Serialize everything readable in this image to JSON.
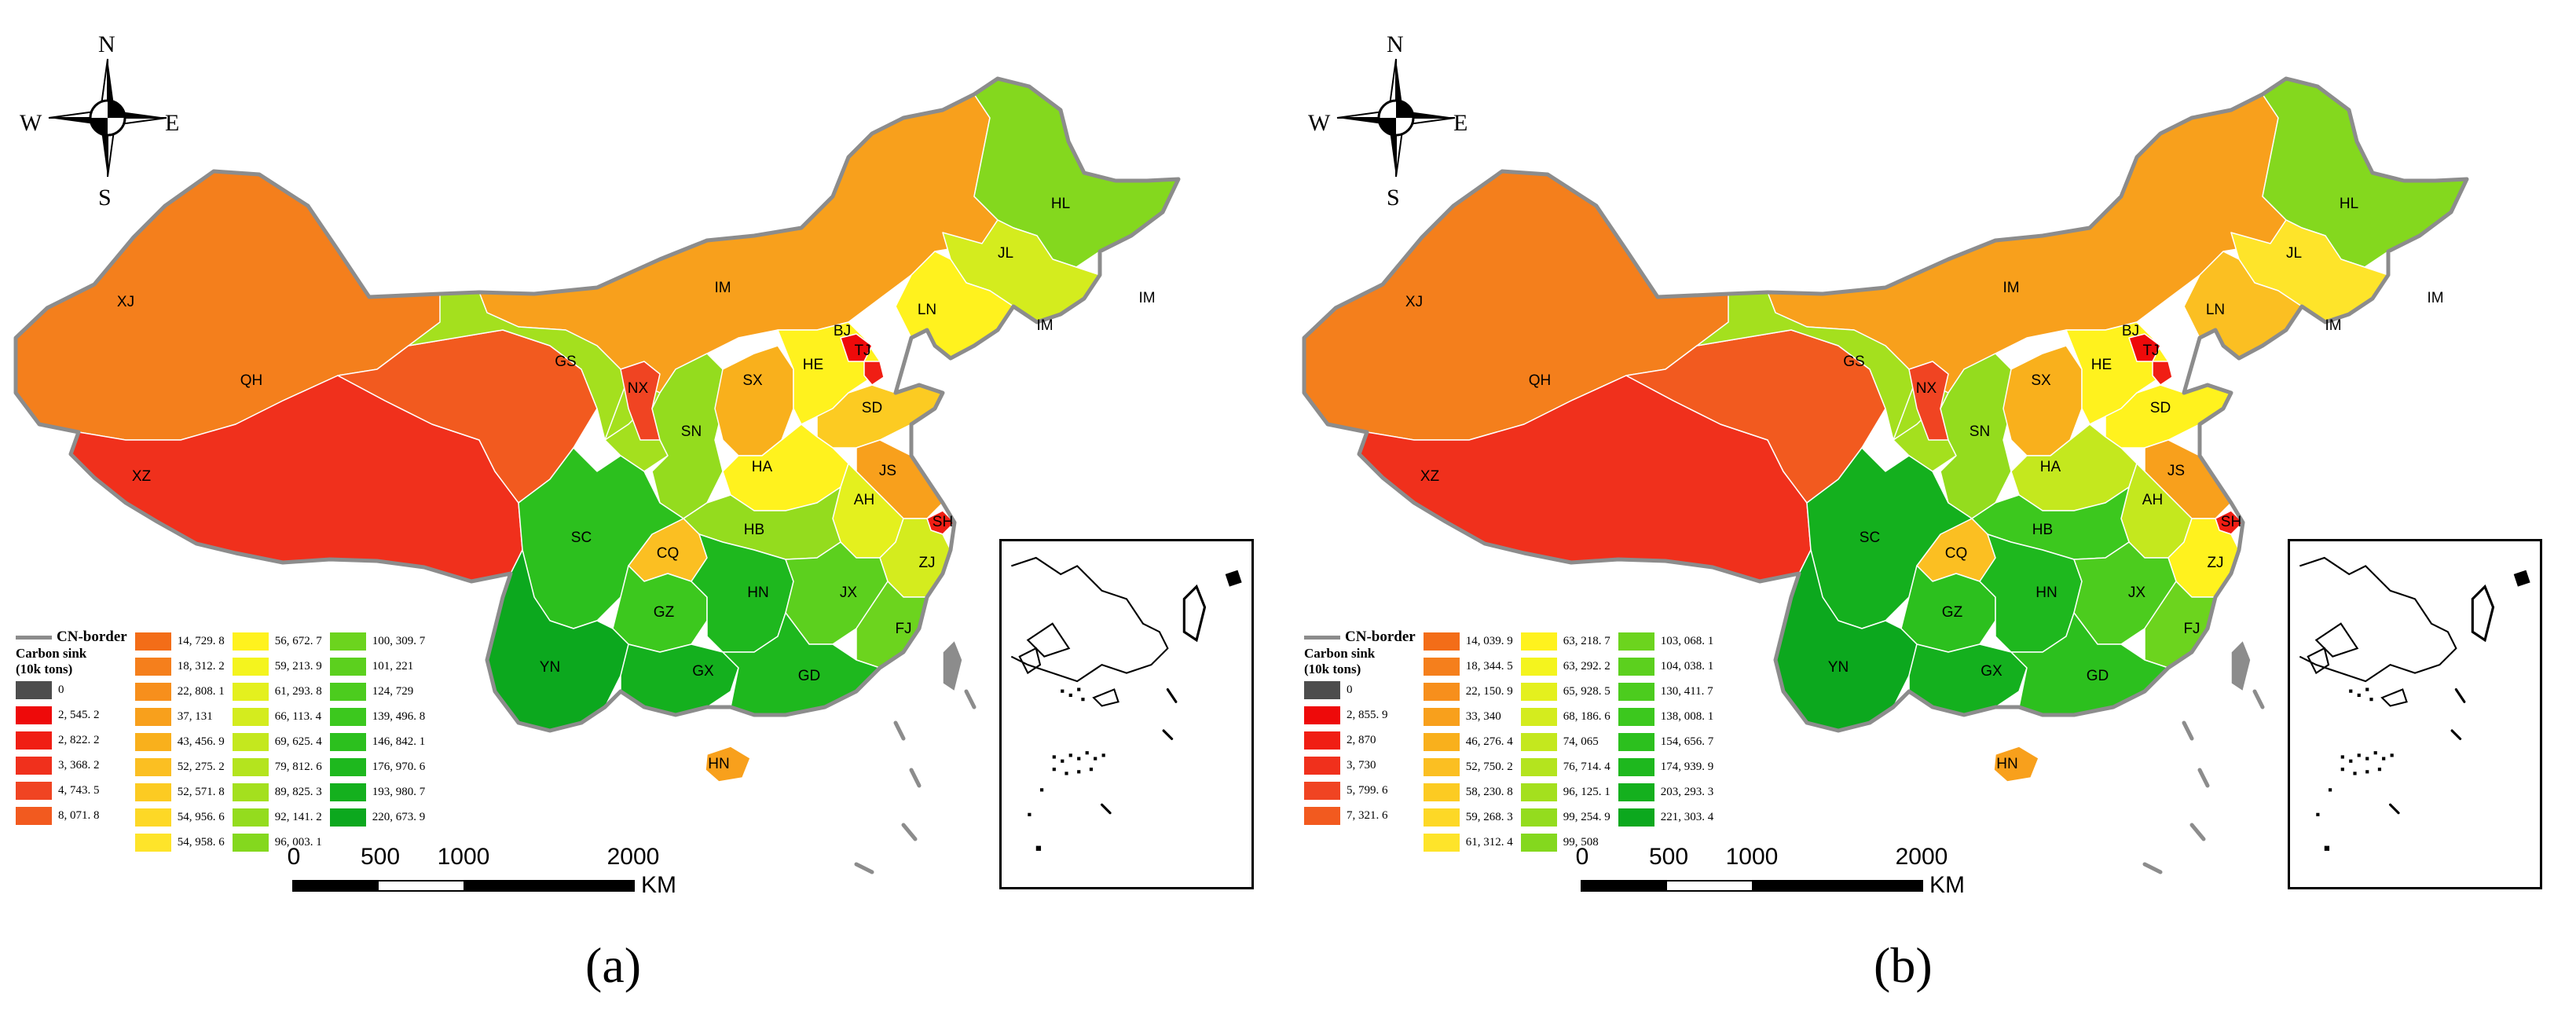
{
  "panels": [
    {
      "id": "a",
      "label": "(a)",
      "compass": {
        "n": "N",
        "s": "S",
        "e": "E",
        "w": "W"
      },
      "border_label": "CN-border",
      "legend_title_1": "Carbon sink",
      "legend_title_2": "(10k tons)",
      "legend_columns": [
        [
          {
            "value": "0",
            "color": "#4d4d4d"
          },
          {
            "value": "2, 545. 2",
            "color": "#ee0a0a"
          },
          {
            "value": "2, 822. 2",
            "color": "#f01e14"
          },
          {
            "value": "3, 368. 2",
            "color": "#f0301c"
          },
          {
            "value": "4, 743. 5",
            "color": "#f04422"
          },
          {
            "value": "8, 071. 8",
            "color": "#f25a1f"
          }
        ],
        [
          {
            "value": "14, 729. 8",
            "color": "#f36d18"
          },
          {
            "value": "18, 312. 2",
            "color": "#f57f1c"
          },
          {
            "value": "22, 808. 1",
            "color": "#f78f1c"
          },
          {
            "value": "37, 131",
            "color": "#f8a01c"
          },
          {
            "value": "43, 456. 9",
            "color": "#f9b01c"
          },
          {
            "value": "52, 275. 2",
            "color": "#fbbf22"
          },
          {
            "value": "52, 571. 8",
            "color": "#fccb22"
          },
          {
            "value": "54, 956. 6",
            "color": "#fdd826"
          },
          {
            "value": "54, 958. 6",
            "color": "#fee42a"
          }
        ],
        [
          {
            "value": "56, 672. 7",
            "color": "#fff21e"
          },
          {
            "value": "59, 213. 9",
            "color": "#f4f41e"
          },
          {
            "value": "61, 293. 8",
            "color": "#e4f01e"
          },
          {
            "value": "66, 113. 4",
            "color": "#d4ec1e"
          },
          {
            "value": "69, 625. 4",
            "color": "#c4e81e"
          },
          {
            "value": "79, 812. 6",
            "color": "#b4e41e"
          },
          {
            "value": "89, 825. 3",
            "color": "#a4e01e"
          },
          {
            "value": "92, 141. 2",
            "color": "#94dc1e"
          },
          {
            "value": "96, 003. 1",
            "color": "#84d81e"
          }
        ],
        [
          {
            "value": "100, 309. 7",
            "color": "#6cd41e"
          },
          {
            "value": "101, 221",
            "color": "#5cd01e"
          },
          {
            "value": "124, 729",
            "color": "#4ccc1e"
          },
          {
            "value": "139, 496. 8",
            "color": "#3cc81e"
          },
          {
            "value": "146, 842. 1",
            "color": "#2cc01e"
          },
          {
            "value": "176, 970. 6",
            "color": "#1eb81e"
          },
          {
            "value": "193, 980. 7",
            "color": "#14b01e"
          },
          {
            "value": "220, 673. 9",
            "color": "#0ca81e"
          }
        ]
      ],
      "scale": {
        "ticks": [
          "0",
          "500",
          "1000",
          "2000"
        ],
        "unit": "KM"
      },
      "provinces": {
        "XJ": "#f47f1c",
        "XZ": "#f0301c",
        "QH": "#f25a1f",
        "IM": "#f8a01c",
        "HL": "#84d81e",
        "JL": "#d4ec1e",
        "LN": "#fff21e",
        "GS": "#a4e01e",
        "NX": "#f04422",
        "SN": "#94dc1e",
        "SX": "#f9b01c",
        "HE": "#fff21e",
        "BJ": "#ee0a0a",
        "TJ": "#f01e14",
        "SD": "#fccb22",
        "HA": "#fff21e",
        "JS": "#f8a01c",
        "SH": "#f01e14",
        "AH": "#e4f01e",
        "HB": "#94dc1e",
        "SC": "#2cc01e",
        "CQ": "#fbbf22",
        "GZ": "#3cc81e",
        "HN": "#1eb81e",
        "JX": "#5cd01e",
        "ZJ": "#d4ec1e",
        "FJ": "#6cd41e",
        "YN": "#0ca81e",
        "GX": "#14b01e",
        "GD": "#1eb81e",
        "HI": "#f8a01c",
        "TW": "#8c8c8c"
      }
    },
    {
      "id": "b",
      "label": "(b)",
      "compass": {
        "n": "N",
        "s": "S",
        "e": "E",
        "w": "W"
      },
      "border_label": "CN-border",
      "legend_title_1": "Carbon sink",
      "legend_title_2": "(10k tons)",
      "legend_columns": [
        [
          {
            "value": "0",
            "color": "#4d4d4d"
          },
          {
            "value": "2, 855. 9",
            "color": "#ee0a0a"
          },
          {
            "value": "2, 870",
            "color": "#f01e14"
          },
          {
            "value": "3, 730",
            "color": "#f0301c"
          },
          {
            "value": "5, 799. 6",
            "color": "#f04422"
          },
          {
            "value": "7, 321. 6",
            "color": "#f25a1f"
          }
        ],
        [
          {
            "value": "14, 039. 9",
            "color": "#f36d18"
          },
          {
            "value": "18, 344. 5",
            "color": "#f57f1c"
          },
          {
            "value": "22, 150. 9",
            "color": "#f78f1c"
          },
          {
            "value": "33, 340",
            "color": "#f8a01c"
          },
          {
            "value": "46, 276. 4",
            "color": "#f9b01c"
          },
          {
            "value": "52, 750. 2",
            "color": "#fbbf22"
          },
          {
            "value": "58, 230. 8",
            "color": "#fccb22"
          },
          {
            "value": "59, 268. 3",
            "color": "#fdd826"
          },
          {
            "value": "61, 312. 4",
            "color": "#fee42a"
          }
        ],
        [
          {
            "value": "63, 218. 7",
            "color": "#fff21e"
          },
          {
            "value": "63, 292. 2",
            "color": "#f4f41e"
          },
          {
            "value": "65, 928. 5",
            "color": "#e4f01e"
          },
          {
            "value": "68, 186. 6",
            "color": "#d4ec1e"
          },
          {
            "value": "74, 065",
            "color": "#c4e81e"
          },
          {
            "value": "76, 714. 4",
            "color": "#b4e41e"
          },
          {
            "value": "96, 125. 1",
            "color": "#a4e01e"
          },
          {
            "value": "99, 254. 9",
            "color": "#94dc1e"
          },
          {
            "value": "99, 508",
            "color": "#84d81e"
          }
        ],
        [
          {
            "value": "103, 068. 1",
            "color": "#6cd41e"
          },
          {
            "value": "104, 038. 1",
            "color": "#5cd01e"
          },
          {
            "value": "130, 411. 7",
            "color": "#4ccc1e"
          },
          {
            "value": "138, 008. 1",
            "color": "#3cc81e"
          },
          {
            "value": "154, 656. 7",
            "color": "#2cc01e"
          },
          {
            "value": "174, 939. 9",
            "color": "#1eb81e"
          },
          {
            "value": "203, 293. 3",
            "color": "#14b01e"
          },
          {
            "value": "221, 303. 4",
            "color": "#0ca81e"
          }
        ]
      ],
      "scale": {
        "ticks": [
          "0",
          "500",
          "1000",
          "2000"
        ],
        "unit": "KM"
      },
      "provinces": {
        "XJ": "#f47f1c",
        "XZ": "#f0301c",
        "QH": "#f25a1f",
        "IM": "#f8a01c",
        "HL": "#84d81e",
        "JL": "#fee42a",
        "LN": "#fbbf22",
        "GS": "#a4e01e",
        "NX": "#f04422",
        "SN": "#94dc1e",
        "SX": "#f9b01c",
        "HE": "#fff21e",
        "BJ": "#ee0a0a",
        "TJ": "#f01e14",
        "SD": "#fff21e",
        "HA": "#c4e81e",
        "JS": "#f8a01c",
        "SH": "#f01e14",
        "AH": "#c4e81e",
        "HB": "#3cc81e",
        "SC": "#14b01e",
        "CQ": "#fbbf22",
        "GZ": "#2cc01e",
        "HN": "#1eb81e",
        "JX": "#4ccc1e",
        "ZJ": "#fff21e",
        "FJ": "#6cd41e",
        "YN": "#0ca81e",
        "GX": "#14b01e",
        "GD": "#2cc01e",
        "HI": "#f8a01c",
        "TW": "#8c8c8c"
      }
    }
  ],
  "province_labels": {
    "XJ": "XJ",
    "XZ": "XZ",
    "QH": "QH",
    "IM": "IM",
    "HL": "HL",
    "JL": "JL",
    "LN": "LN",
    "GS": "GS",
    "NX": "NX",
    "SN": "SN",
    "SX": "SX",
    "HE": "HE",
    "BJ": "BJ",
    "TJ": "TJ",
    "SD": "SD",
    "HA": "HA",
    "JS": "JS",
    "SH": "SH",
    "AH": "AH",
    "HB": "HB",
    "SC": "SC",
    "CQ": "CQ",
    "GZ": "GZ",
    "HN_hunan": "HN",
    "JX": "JX",
    "ZJ": "ZJ",
    "FJ": "FJ",
    "YN": "YN",
    "GX": "GX",
    "GD": "GD",
    "HI": "HN",
    "IM_2": "IM",
    "IM_3": "IM"
  }
}
